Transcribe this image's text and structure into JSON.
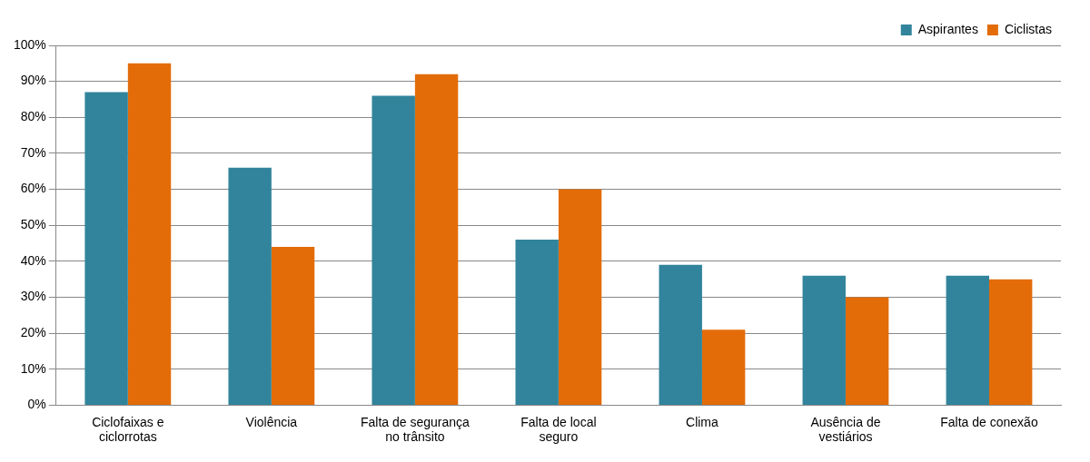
{
  "chart_data": {
    "type": "bar",
    "categories": [
      "Ciclofaixas e ciclorrotas",
      "Violência",
      "Falta de segurança no trânsito",
      "Falta de local seguro",
      "Clima",
      "Ausência de vestiários",
      "Falta de conexão"
    ],
    "series": [
      {
        "name": "Aspirantes",
        "color": "#31849b",
        "values": [
          87,
          66,
          86,
          46,
          39,
          36,
          36
        ]
      },
      {
        "name": "Ciclistas",
        "color": "#e36c09",
        "values": [
          95,
          44,
          92,
          60,
          21,
          30,
          35
        ]
      }
    ],
    "ylim": [
      0,
      100
    ],
    "yticks": [
      {
        "value": 0,
        "label": "0%"
      },
      {
        "value": 10,
        "label": "10%"
      },
      {
        "value": 20,
        "label": "20%"
      },
      {
        "value": 30,
        "label": "30%"
      },
      {
        "value": 40,
        "label": "40%"
      },
      {
        "value": 50,
        "label": "50%"
      },
      {
        "value": 60,
        "label": "60%"
      },
      {
        "value": 70,
        "label": "70%"
      },
      {
        "value": 80,
        "label": "80%"
      },
      {
        "value": 90,
        "label": "90%"
      },
      {
        "value": 100,
        "label": "100%"
      }
    ],
    "grid": "y",
    "legend": "top right"
  }
}
